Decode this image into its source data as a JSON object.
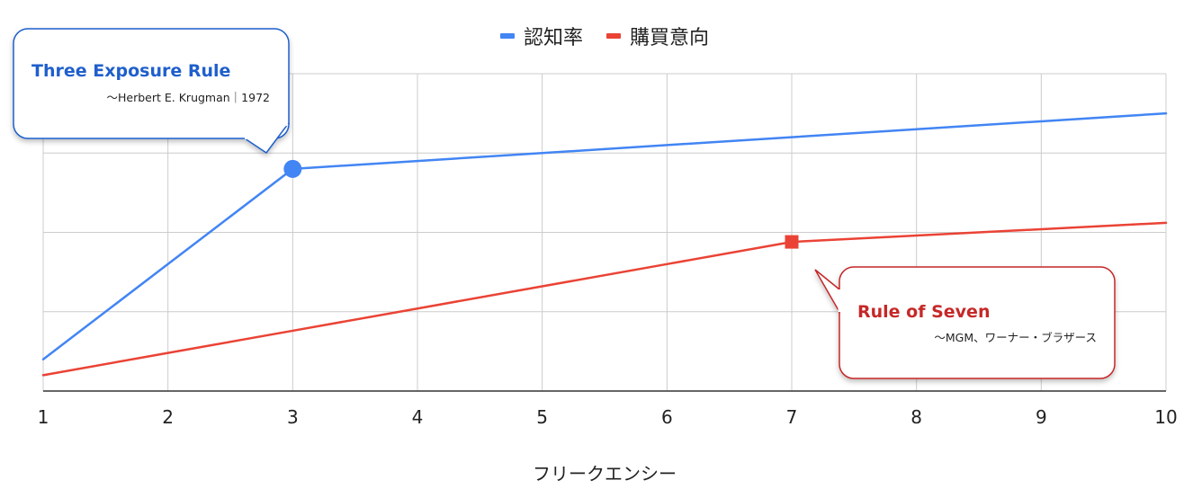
{
  "chart_data": {
    "type": "line",
    "x": [
      1,
      2,
      3,
      4,
      5,
      6,
      7,
      8,
      9,
      10
    ],
    "xlabel": "フリークエンシー",
    "ylabel": "",
    "xlim": [
      1,
      10
    ],
    "ylim": [
      0,
      4
    ],
    "grid": true,
    "legend_position": "top-center",
    "series": [
      {
        "name": "認知率",
        "color": "#4285f4",
        "marker": "circle",
        "values": [
          0.4,
          1.6,
          2.8,
          2.9,
          3.0,
          3.1,
          3.2,
          3.3,
          3.4,
          3.5
        ]
      },
      {
        "name": "購買意向",
        "color": "#ea4335",
        "marker": "square",
        "values": [
          0.2,
          0.48,
          0.76,
          1.04,
          1.32,
          1.6,
          1.88,
          1.96,
          2.04,
          2.12
        ]
      }
    ],
    "annotations": [
      {
        "series": "認知率",
        "x": 3,
        "title": "Three Exposure Rule",
        "subtitle": "～Herbert E. Krugman｜1972",
        "color": "#1f5fcc"
      },
      {
        "series": "購買意向",
        "x": 7,
        "title": "Rule of Seven",
        "subtitle": "～MGM、ワーナー・ブラザース",
        "color": "#c62828"
      }
    ]
  }
}
